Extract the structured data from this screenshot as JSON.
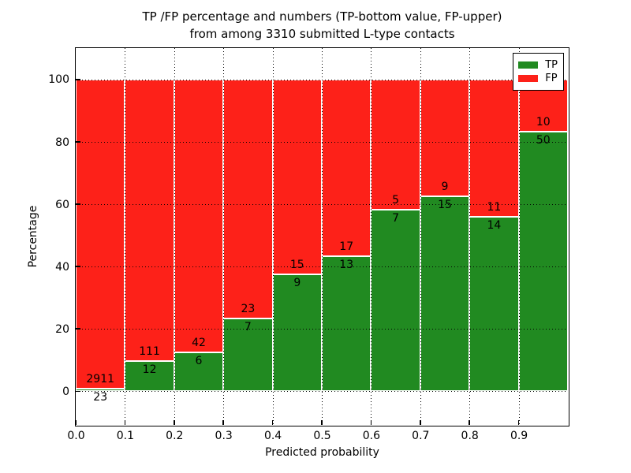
{
  "chart_data": {
    "type": "bar",
    "variant": "stacked-percentage-histogram",
    "title_lines": [
      "TP /FP percentage and numbers (TP-bottom value, FP-upper)",
      "from among 3310 submitted L-type contacts"
    ],
    "xlabel": "Predicted probability",
    "ylabel": "Percentage",
    "xlim": [
      0.0,
      1.0
    ],
    "ylim": [
      -10.8,
      110.1
    ],
    "bin_width": 0.1,
    "bin_starts": [
      0.0,
      0.1,
      0.2,
      0.3,
      0.4,
      0.5,
      0.6,
      0.7,
      0.8,
      0.9
    ],
    "x_tick_values": [
      0.0,
      0.1,
      0.2,
      0.3,
      0.4,
      0.5,
      0.6,
      0.7,
      0.8,
      0.9
    ],
    "x_tick_labels": [
      "0.0",
      "0.1",
      "0.2",
      "0.3",
      "0.4",
      "0.5",
      "0.6",
      "0.7",
      "0.8",
      "0.9"
    ],
    "y_tick_values": [
      0,
      20,
      40,
      60,
      80,
      100
    ],
    "y_tick_labels": [
      "0",
      "20",
      "40",
      "60",
      "80",
      "100"
    ],
    "grid": true,
    "grid_style": "dotted black drawn over bars",
    "total_contacts": 3310,
    "series": [
      {
        "name": "TP",
        "stack": "bottom",
        "color": "#218a21",
        "counts": [
          23,
          12,
          6,
          7,
          9,
          13,
          7,
          15,
          14,
          50
        ],
        "label_placement": "below stack boundary"
      },
      {
        "name": "FP",
        "stack": "top",
        "color": "#fd2119",
        "counts": [
          2911,
          111,
          42,
          23,
          15,
          17,
          5,
          9,
          11,
          10
        ],
        "label_placement": "above stack boundary"
      }
    ],
    "tp_percent_of_bin": [
      0.78,
      9.76,
      12.5,
      23.33,
      37.5,
      43.33,
      58.33,
      62.5,
      56.0,
      83.33
    ],
    "legend": {
      "position": "upper right",
      "entries": [
        "TP",
        "FP"
      ]
    }
  },
  "colors": {
    "tp_green": "#218a21",
    "fp_red": "#fd2119",
    "bar_edge": "#ffffff",
    "grid": "#000000",
    "text": "#000000",
    "background": "#ffffff"
  }
}
